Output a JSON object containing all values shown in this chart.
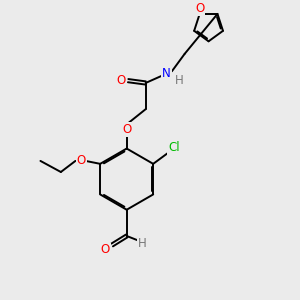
{
  "bg_color": "#ebebeb",
  "bond_color": "#000000",
  "atom_colors": {
    "O": "#ff0000",
    "N": "#0000ff",
    "Cl": "#00bb00",
    "H": "#777777"
  },
  "bond_lw": 1.4,
  "dbl_off": 0.055,
  "figsize": [
    3.0,
    3.0
  ],
  "dpi": 100
}
